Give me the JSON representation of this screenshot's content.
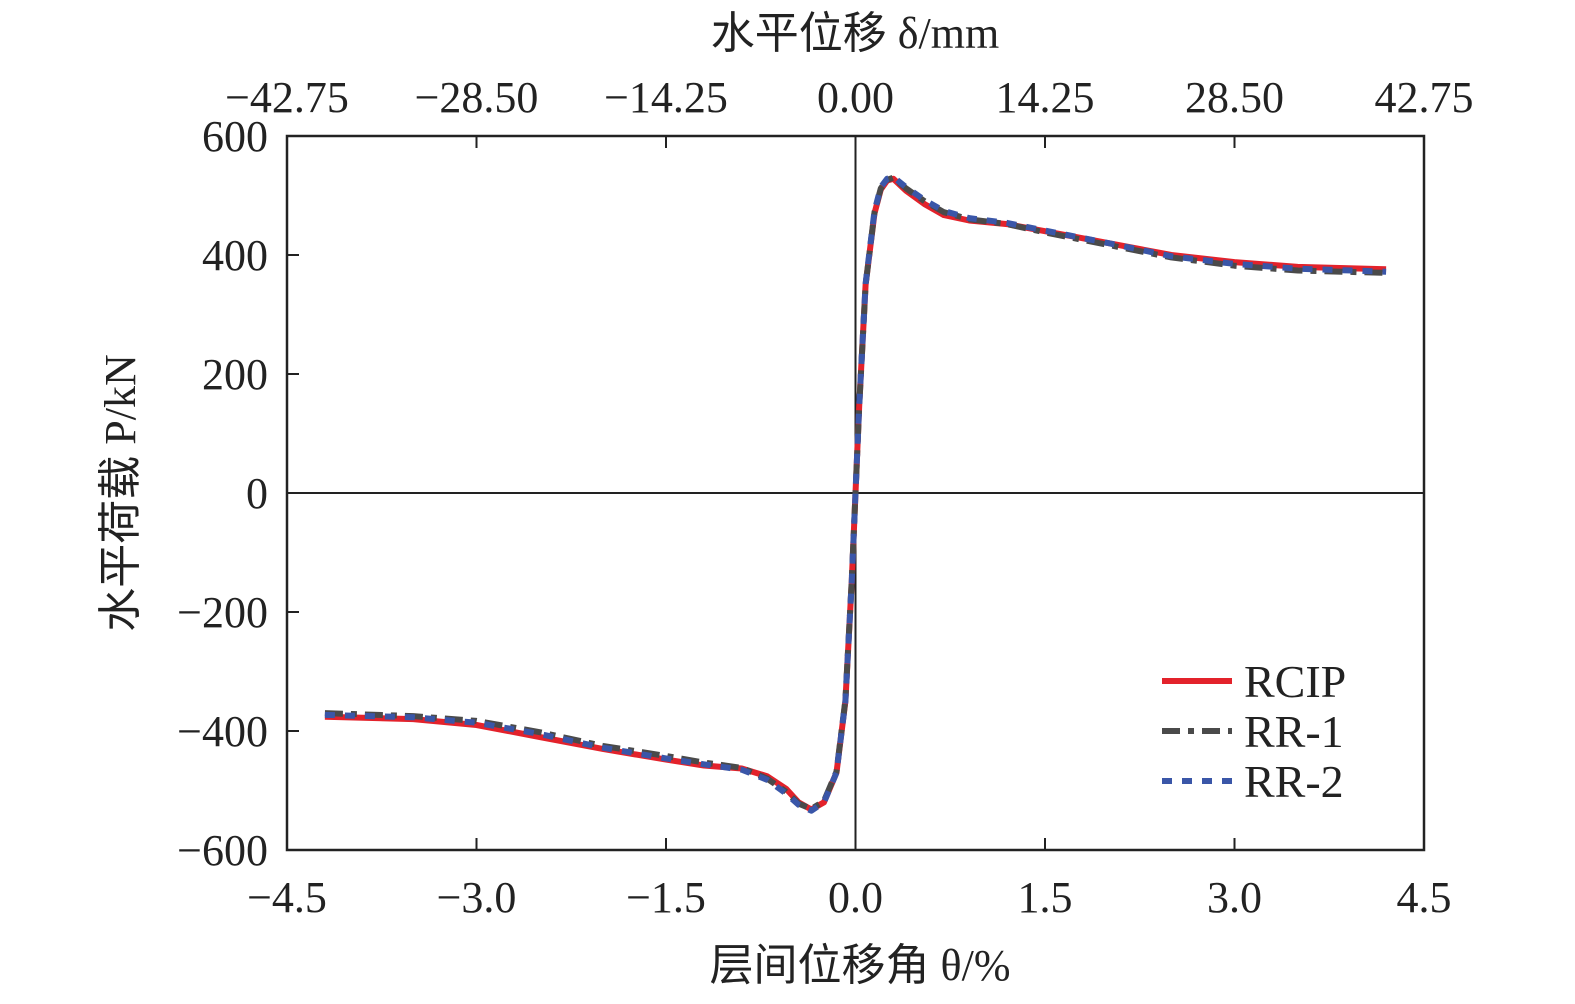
{
  "chart_data": {
    "type": "line",
    "xlabel_bottom": "层间位移角 θ/%",
    "xlabel_top": "水平位移 δ/mm",
    "ylabel": "水平荷载 P/kN",
    "xlim": [
      -4.5,
      4.5
    ],
    "ylim": [
      -600,
      600
    ],
    "x_ticks": [
      "−4.5",
      "−3.0",
      "−1.5",
      "0.0",
      "1.5",
      "3.0",
      "4.5"
    ],
    "x_tick_values": [
      -4.5,
      -3.0,
      -1.5,
      0.0,
      1.5,
      3.0,
      4.5
    ],
    "top_ticks": [
      "−42.75",
      "−28.50",
      "−14.25",
      "0.00",
      "14.25",
      "28.50",
      "42.75"
    ],
    "y_ticks": [
      "600",
      "400",
      "200",
      "0",
      "−200",
      "−400",
      "−600"
    ],
    "y_tick_values": [
      600,
      400,
      200,
      0,
      -200,
      -400,
      -600
    ],
    "grid": false,
    "legend_position": "bottom-right",
    "series": [
      {
        "name": "RCIP",
        "color": "#e3222b",
        "dash": "solid",
        "x": [
          -4.2,
          -3.5,
          -3.0,
          -2.5,
          -2.0,
          -1.5,
          -1.2,
          -0.9,
          -0.7,
          -0.55,
          -0.45,
          -0.35,
          -0.25,
          -0.15,
          -0.08,
          -0.03,
          0.0,
          0.03,
          0.08,
          0.15,
          0.2,
          0.25,
          0.3,
          0.4,
          0.55,
          0.7,
          0.9,
          1.2,
          1.5,
          2.0,
          2.5,
          3.0,
          3.5,
          4.2
        ],
        "y": [
          -376,
          -380,
          -390,
          -410,
          -430,
          -448,
          -458,
          -463,
          -476,
          -497,
          -520,
          -532,
          -520,
          -470,
          -350,
          -150,
          0,
          150,
          350,
          470,
          510,
          525,
          528,
          508,
          485,
          467,
          458,
          452,
          440,
          420,
          400,
          388,
          380,
          376
        ]
      },
      {
        "name": "RR-1",
        "color": "#4a4a4a",
        "dash": "18 8 6 8",
        "x": [
          -4.2,
          -3.5,
          -3.0,
          -2.5,
          -2.0,
          -1.5,
          -1.2,
          -0.9,
          -0.7,
          -0.55,
          -0.45,
          -0.35,
          -0.25,
          -0.15,
          -0.08,
          -0.03,
          0.0,
          0.03,
          0.08,
          0.15,
          0.2,
          0.25,
          0.3,
          0.4,
          0.55,
          0.7,
          0.9,
          1.2,
          1.5,
          2.0,
          2.5,
          3.0,
          3.5,
          4.2
        ],
        "y": [
          -370,
          -375,
          -383,
          -402,
          -425,
          -442,
          -453,
          -462,
          -480,
          -502,
          -522,
          -531,
          -518,
          -468,
          -348,
          -148,
          0,
          148,
          350,
          472,
          512,
          526,
          530,
          512,
          490,
          472,
          460,
          452,
          438,
          417,
          396,
          382,
          374,
          370
        ]
      },
      {
        "name": "RR-2",
        "color": "#3a56a8",
        "dash": "10 10",
        "x": [
          -4.2,
          -3.5,
          -3.0,
          -2.5,
          -2.0,
          -1.5,
          -1.2,
          -0.9,
          -0.7,
          -0.55,
          -0.45,
          -0.35,
          -0.25,
          -0.15,
          -0.08,
          -0.03,
          0.0,
          0.03,
          0.08,
          0.15,
          0.2,
          0.25,
          0.3,
          0.4,
          0.55,
          0.7,
          0.9,
          1.2,
          1.5,
          2.0,
          2.5,
          3.0,
          3.5,
          4.2
        ],
        "y": [
          -373,
          -377,
          -386,
          -405,
          -428,
          -446,
          -456,
          -465,
          -482,
          -505,
          -524,
          -534,
          -520,
          -470,
          -350,
          -150,
          0,
          150,
          352,
          474,
          514,
          528,
          531,
          514,
          492,
          474,
          462,
          454,
          441,
          420,
          398,
          385,
          377,
          372
        ]
      }
    ]
  }
}
